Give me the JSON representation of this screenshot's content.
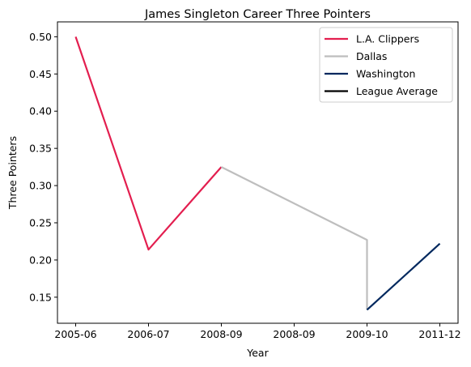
{
  "chart_data": {
    "type": "line",
    "title": "James Singleton  Career Three Pointers",
    "xlabel": "Year",
    "ylabel": "Three Pointers",
    "x_tick_labels": [
      "2005-06",
      "2006-07",
      "2008-09",
      "2008-09",
      "2009-10",
      "2011-12"
    ],
    "ylim": [
      0.115,
      0.52
    ],
    "y_ticks": [
      0.15,
      0.2,
      0.25,
      0.3,
      0.35,
      0.4,
      0.45,
      0.5
    ],
    "y_tick_labels": [
      "0.15",
      "0.20",
      "0.25",
      "0.30",
      "0.35",
      "0.40",
      "0.45",
      "0.50"
    ],
    "grid": false,
    "legend_position": "top-right",
    "series": [
      {
        "name": "L.A. Clippers",
        "color": "#e31e4f",
        "points": [
          {
            "x": "2005-06",
            "y": 0.5
          },
          {
            "x": "2006-07",
            "y": 0.214
          },
          {
            "x": "2008-09",
            "y": 0.325
          }
        ]
      },
      {
        "name": "Dallas",
        "color": "#bebebe",
        "points": [
          {
            "x": "2008-09",
            "y": 0.325
          },
          {
            "x": "2009-10",
            "y": 0.227
          },
          {
            "x": "2009-10",
            "y": 0.133
          }
        ]
      },
      {
        "name": "Washington",
        "color": "#00285e",
        "points": [
          {
            "x": "2009-10",
            "y": 0.133
          },
          {
            "x": "2011-12",
            "y": 0.222
          }
        ]
      },
      {
        "name": "League Average",
        "color": "#000000",
        "points": []
      }
    ]
  }
}
